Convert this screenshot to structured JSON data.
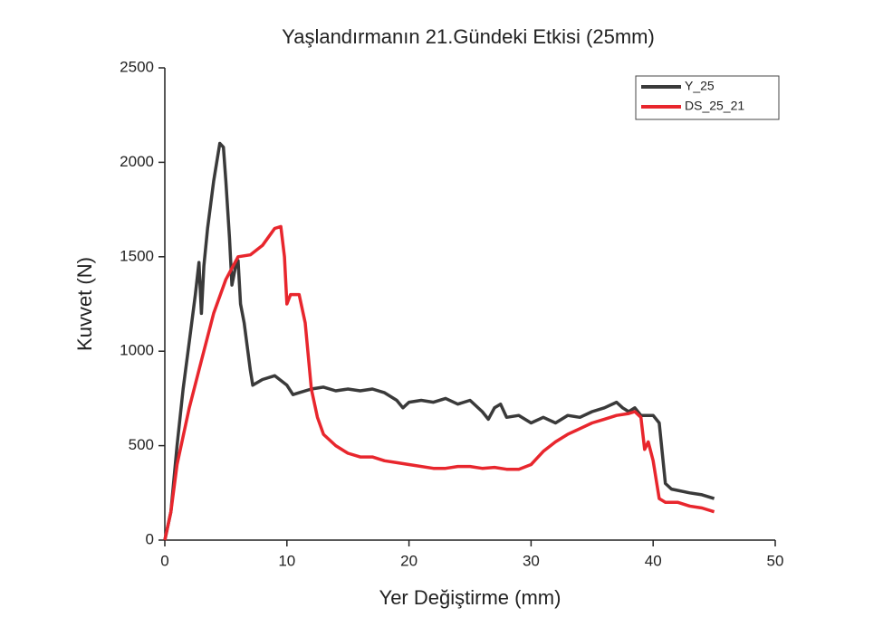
{
  "chart_data": {
    "type": "line",
    "title": "Yaşlandırmanın 21.Gündeki Etkisi (25mm)",
    "x_label": "Yer Değiştirme (mm)",
    "y_label": "Kuvvet (N)",
    "xlim": [
      0,
      50
    ],
    "xticks": [
      0,
      10,
      20,
      30,
      40,
      50
    ],
    "ylim": [
      0,
      2500
    ],
    "yticks": [
      0,
      500,
      1000,
      1500,
      2000,
      2500
    ],
    "grid": false,
    "legend": "upper right",
    "series": [
      {
        "name": "Y_25",
        "color": "#3a3a3a",
        "x": [
          0,
          0.5,
          1,
          1.5,
          2,
          2.5,
          2.8,
          3,
          3.2,
          3.5,
          4,
          4.5,
          4.8,
          5,
          5.3,
          5.5,
          5.8,
          6,
          6.2,
          6.5,
          7,
          7.2,
          8,
          9,
          10,
          10.5,
          11,
          12,
          13,
          14,
          15,
          16,
          17,
          18,
          19,
          19.5,
          20,
          21,
          22,
          23,
          24,
          25,
          26,
          26.5,
          27,
          27.5,
          28,
          29,
          30,
          31,
          32,
          33,
          34,
          35,
          36,
          37,
          37.5,
          38,
          38.5,
          39,
          40,
          40.5,
          41,
          41.5,
          43,
          44,
          45
        ],
        "values": [
          0,
          150,
          500,
          800,
          1050,
          1300,
          1470,
          1200,
          1450,
          1650,
          1900,
          2100,
          2080,
          1900,
          1600,
          1350,
          1450,
          1480,
          1250,
          1150,
          900,
          820,
          850,
          870,
          820,
          770,
          780,
          800,
          810,
          790,
          800,
          790,
          800,
          780,
          740,
          700,
          730,
          740,
          730,
          750,
          720,
          740,
          680,
          640,
          700,
          720,
          650,
          660,
          620,
          650,
          620,
          660,
          650,
          680,
          700,
          730,
          700,
          680,
          700,
          660,
          660,
          620,
          300,
          270,
          250,
          240,
          220
        ]
      },
      {
        "name": "DS_25_21",
        "color": "#e8262d",
        "x": [
          0,
          0.5,
          1,
          2,
          3,
          4,
          5,
          6,
          7,
          8,
          9,
          9.5,
          9.8,
          10,
          10.3,
          11,
          11.5,
          12,
          12.5,
          13,
          14,
          15,
          16,
          17,
          18,
          19,
          20,
          22,
          23,
          24,
          25,
          26,
          27,
          28,
          29,
          30,
          31,
          32,
          33,
          34,
          35,
          36,
          37,
          38,
          38.5,
          39,
          39.3,
          39.6,
          40,
          40.3,
          40.5,
          41,
          42,
          43,
          44,
          45
        ],
        "values": [
          0,
          150,
          400,
          700,
          950,
          1200,
          1380,
          1500,
          1510,
          1560,
          1650,
          1660,
          1500,
          1250,
          1300,
          1300,
          1150,
          800,
          650,
          560,
          500,
          460,
          440,
          440,
          420,
          410,
          400,
          380,
          380,
          390,
          390,
          380,
          385,
          375,
          375,
          400,
          470,
          520,
          560,
          590,
          620,
          640,
          660,
          670,
          680,
          650,
          480,
          520,
          420,
          300,
          220,
          200,
          200,
          180,
          170,
          150
        ]
      }
    ]
  }
}
